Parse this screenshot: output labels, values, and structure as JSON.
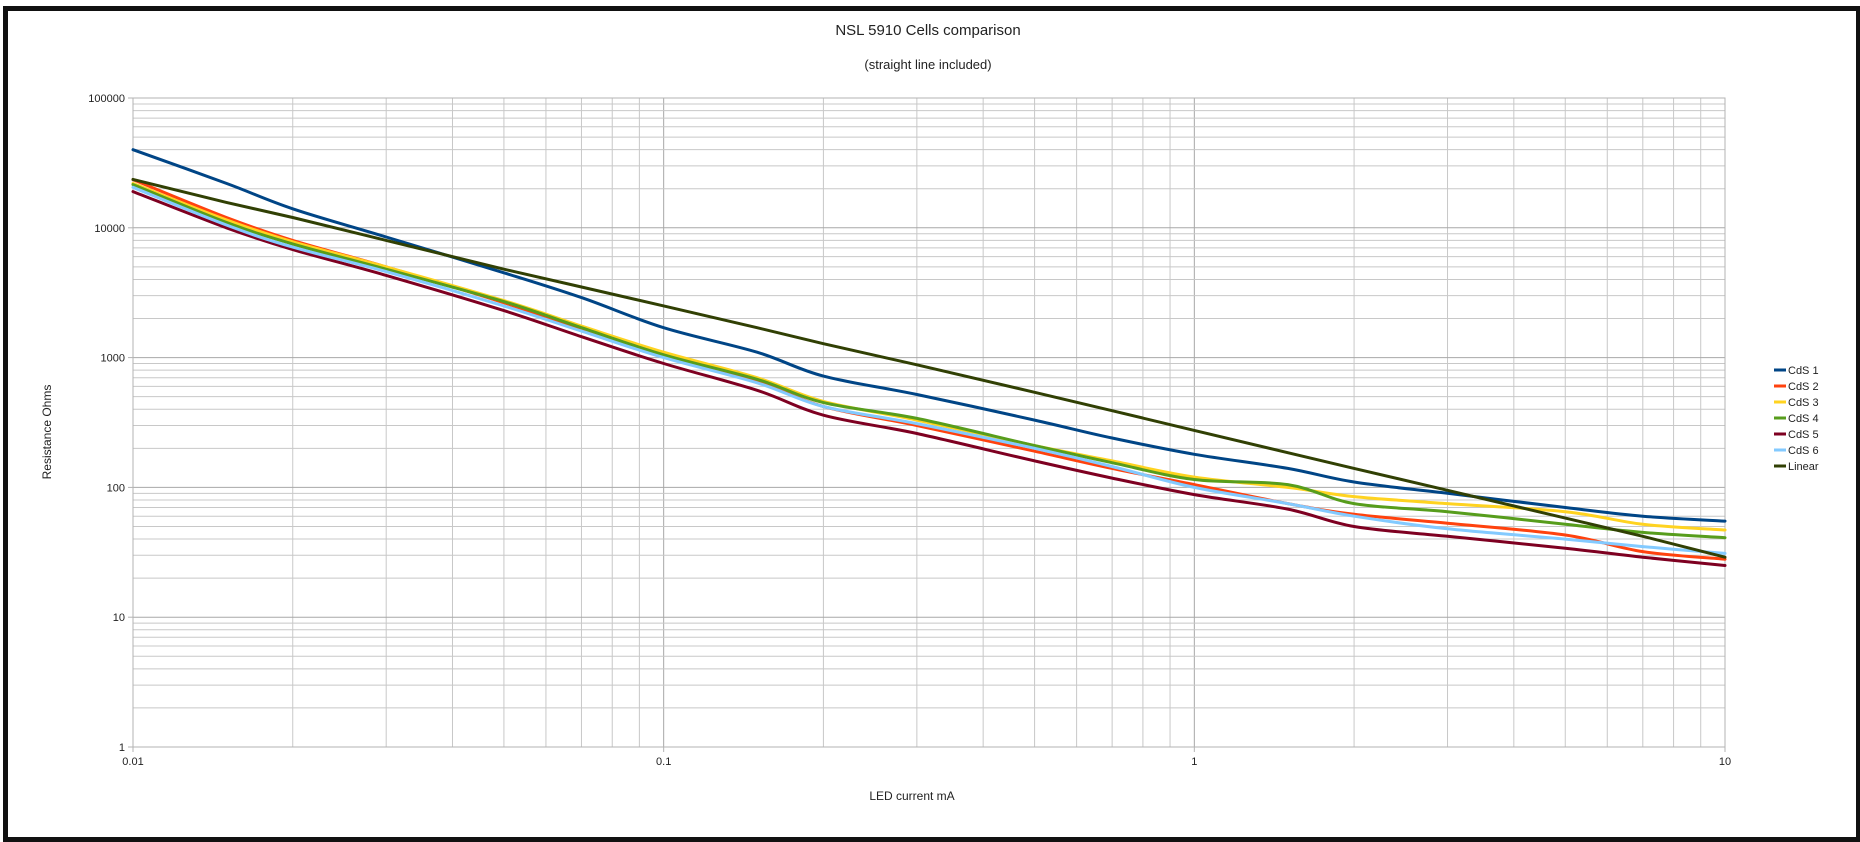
{
  "chart_data": {
    "type": "line",
    "title": "NSL 5910 Cells comparison",
    "subtitle": "(straight line included)",
    "xlabel": "LED current mA",
    "ylabel": "Resistance Ohms",
    "x_scale": "log",
    "y_scale": "log",
    "xlim": [
      0.01,
      10
    ],
    "ylim": [
      1,
      100000
    ],
    "x_ticks": [
      "0.01",
      "0.1",
      "1",
      "10"
    ],
    "y_ticks": [
      "1",
      "10",
      "100",
      "1000",
      "10000",
      "100000"
    ],
    "grid": true,
    "legend": "right",
    "x": [
      0.01,
      0.015,
      0.02,
      0.03,
      0.05,
      0.07,
      0.1,
      0.15,
      0.2,
      0.3,
      0.5,
      0.7,
      1,
      1.5,
      2,
      3,
      5,
      7,
      10
    ],
    "series": [
      {
        "name": "CdS 1",
        "color": "#004586",
        "values": [
          40000,
          22000,
          14000,
          8500,
          4500,
          2900,
          1700,
          1100,
          720,
          520,
          330,
          240,
          180,
          140,
          110,
          90,
          70,
          60,
          55
        ]
      },
      {
        "name": "CdS 2",
        "color": "#ff420e",
        "values": [
          23500,
          12000,
          8000,
          5000,
          2650,
          1650,
          1050,
          650,
          420,
          300,
          190,
          140,
          105,
          75,
          62,
          53,
          43,
          32,
          28
        ]
      },
      {
        "name": "CdS 3",
        "color": "#ffd320",
        "values": [
          22000,
          11500,
          7800,
          5000,
          2750,
          1750,
          1100,
          700,
          460,
          330,
          210,
          160,
          120,
          100,
          85,
          75,
          65,
          52,
          47
        ]
      },
      {
        "name": "CdS 4",
        "color": "#579d1c",
        "values": [
          21500,
          11000,
          7500,
          4800,
          2700,
          1700,
          1050,
          680,
          450,
          340,
          210,
          155,
          115,
          105,
          75,
          65,
          52,
          45,
          41
        ]
      },
      {
        "name": "CdS 5",
        "color": "#7e0021",
        "values": [
          19000,
          10000,
          6800,
          4300,
          2300,
          1450,
          900,
          560,
          360,
          260,
          160,
          118,
          88,
          68,
          50,
          42,
          34,
          29,
          25
        ]
      },
      {
        "name": "CdS 6",
        "color": "#83caff",
        "values": [
          20500,
          10500,
          7100,
          4600,
          2500,
          1600,
          1000,
          640,
          420,
          310,
          200,
          145,
          100,
          75,
          60,
          48,
          40,
          35,
          31
        ]
      },
      {
        "name": "Linear",
        "color": "#314004",
        "values": [
          23600,
          15700,
          12000,
          8000,
          4800,
          3500,
          2500,
          1700,
          1280,
          880,
          540,
          390,
          275,
          185,
          140,
          95,
          58,
          42,
          29
        ]
      }
    ]
  }
}
